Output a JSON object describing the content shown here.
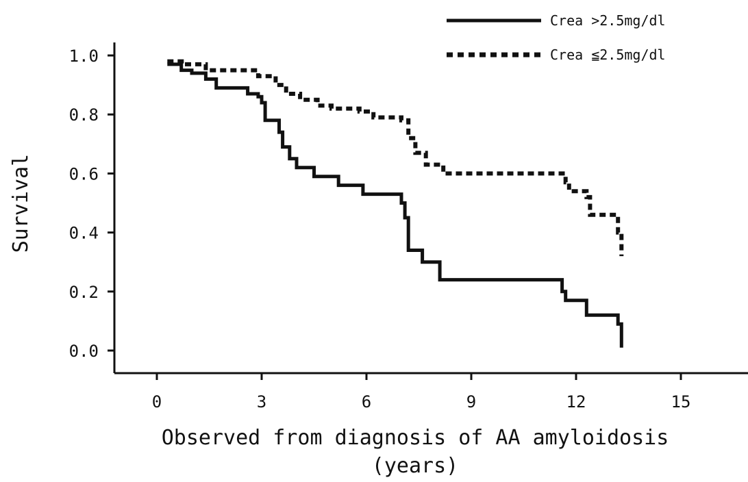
{
  "chart_data": {
    "type": "line",
    "subtype": "kaplan-meier step curves",
    "title": "",
    "xlabel": "Observed from diagnosis of AA amyloidosis",
    "xlabel_unit": "(years)",
    "ylabel": "Survival",
    "xlim": [
      0,
      17
    ],
    "ylim": [
      0,
      1.0
    ],
    "x_ticks": [
      0,
      3,
      6,
      9,
      12,
      15
    ],
    "x_tick_labels": [
      "0",
      "3",
      "6",
      "9",
      "12",
      "15"
    ],
    "y_ticks": [
      0.0,
      0.2,
      0.4,
      0.6,
      0.8,
      1.0
    ],
    "y_tick_labels": [
      "0.0",
      "0.2",
      "0.4",
      "0.6",
      "0.8",
      "1.0"
    ],
    "grid": false,
    "legend_position": "top-right",
    "series": [
      {
        "name": "Crea >2.5mg/dl",
        "line_style": "solid",
        "color": "#111111",
        "x": [
          0.3,
          0.7,
          1.0,
          1.4,
          1.7,
          2.6,
          2.9,
          3.0,
          3.1,
          3.5,
          3.6,
          3.8,
          4.0,
          4.5,
          5.2,
          5.9,
          7.0,
          7.1,
          7.2,
          7.6,
          8.1,
          11.6,
          11.7,
          12.3,
          13.2,
          13.3
        ],
        "y": [
          0.97,
          0.95,
          0.94,
          0.92,
          0.89,
          0.87,
          0.86,
          0.84,
          0.78,
          0.74,
          0.69,
          0.65,
          0.62,
          0.59,
          0.56,
          0.53,
          0.5,
          0.45,
          0.34,
          0.3,
          0.24,
          0.2,
          0.17,
          0.12,
          0.09,
          0.01
        ]
      },
      {
        "name": "Crea ≦2.5mg/dl",
        "line_style": "dashed",
        "color": "#111111",
        "x": [
          0.3,
          0.8,
          1.4,
          2.9,
          3.4,
          3.7,
          4.1,
          4.6,
          5.0,
          5.8,
          6.2,
          7.0,
          7.2,
          7.4,
          7.7,
          8.2,
          11.7,
          11.8,
          12.3,
          12.4,
          13.2,
          13.3
        ],
        "y": [
          0.98,
          0.97,
          0.95,
          0.93,
          0.9,
          0.87,
          0.85,
          0.83,
          0.82,
          0.81,
          0.79,
          0.78,
          0.72,
          0.67,
          0.63,
          0.6,
          0.57,
          0.54,
          0.52,
          0.46,
          0.4,
          0.32
        ]
      }
    ]
  }
}
